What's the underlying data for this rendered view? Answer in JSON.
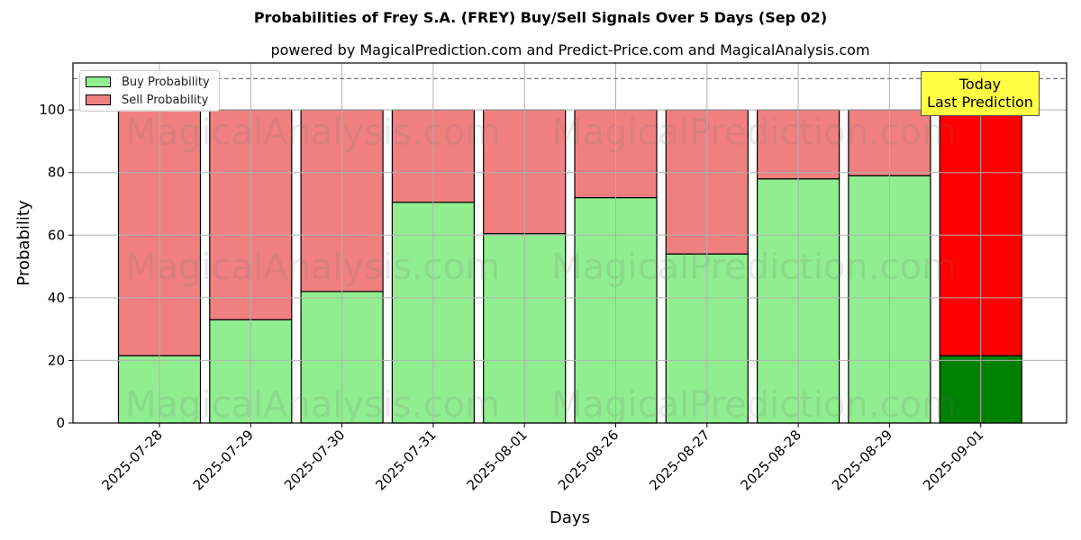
{
  "title": "Probabilities of Frey S.A. (FREY) Buy/Sell Signals Over 5 Days (Sep 02)",
  "subtitle": "powered by MagicalPrediction.com and Predict-Price.com and MagicalAnalysis.com",
  "legend": {
    "buy_label": "Buy Probability",
    "sell_label": "Sell Probability"
  },
  "annotation": {
    "line1": "Today",
    "line2": "Last Prediction"
  },
  "watermarks": [
    "MagicalAnalysis.com",
    "MagicalPrediction.com"
  ],
  "colors": {
    "buy": "#90ee90",
    "sell": "#f08080",
    "buy_today": "#008000",
    "sell_today": "#ff0000",
    "annotation_bg": "#ffff44"
  },
  "chart_data": {
    "type": "bar",
    "stacked": true,
    "categories": [
      "2025-07-28",
      "2025-07-29",
      "2025-07-30",
      "2025-07-31",
      "2025-08-01",
      "2025-08-26",
      "2025-08-27",
      "2025-08-28",
      "2025-08-29",
      "2025-09-01"
    ],
    "series": [
      {
        "name": "Buy Probability",
        "values": [
          21.5,
          33,
          42,
          70.5,
          60.5,
          72,
          54,
          78,
          79,
          21.5
        ]
      },
      {
        "name": "Sell Probability",
        "values": [
          78.5,
          67,
          58,
          29.5,
          39.5,
          28,
          46,
          22,
          21,
          78.5
        ]
      }
    ],
    "xlabel": "Days",
    "ylabel": "Probability",
    "ylim": [
      0,
      115
    ],
    "yticks": [
      0,
      20,
      40,
      60,
      80,
      100
    ],
    "reference_line": 110,
    "grid": true,
    "legend_position": "top-left",
    "highlight_last": true
  }
}
